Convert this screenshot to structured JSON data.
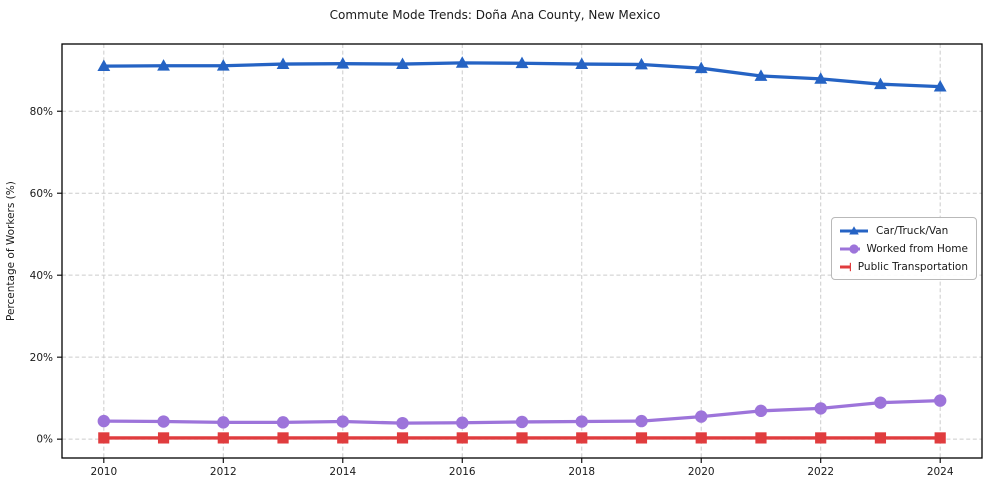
{
  "title": "Commute Mode Trends: Doña Ana County, New Mexico",
  "chart_data": {
    "type": "line",
    "title": "Commute Mode Trends: Doña Ana County, New Mexico",
    "xlabel": "",
    "ylabel": "Percentage of Workers (%)",
    "x": [
      2010,
      2011,
      2012,
      2013,
      2014,
      2015,
      2016,
      2017,
      2018,
      2019,
      2020,
      2021,
      2022,
      2023,
      2024
    ],
    "x_ticks": [
      2010,
      2012,
      2014,
      2016,
      2018,
      2020,
      2022,
      2024
    ],
    "y_ticks": [
      0,
      20,
      40,
      60,
      80
    ],
    "y_tick_suffix": "%",
    "xlim": [
      2009.3,
      2024.7
    ],
    "ylim": [
      -4.6,
      96.4
    ],
    "grid": true,
    "grid_style": "dashed",
    "legend_position": "center-right",
    "background_color": "#ffffff",
    "text_color": "#1a1a1a",
    "grid_color": "#cccccc",
    "series": [
      {
        "name": "Car/Truck/Van",
        "color": "#2563c4",
        "marker": "triangle",
        "values": [
          91.0,
          91.1,
          91.1,
          91.5,
          91.6,
          91.5,
          91.8,
          91.7,
          91.5,
          91.4,
          90.5,
          88.6,
          87.9,
          86.6,
          86.0
        ]
      },
      {
        "name": "Worked from Home",
        "color": "#9d74da",
        "marker": "circle",
        "values": [
          4.4,
          4.3,
          4.1,
          4.1,
          4.3,
          3.9,
          4.0,
          4.2,
          4.3,
          4.4,
          5.5,
          6.9,
          7.5,
          8.9,
          9.4
        ]
      },
      {
        "name": "Public Transportation",
        "color": "#e03c3e",
        "marker": "square",
        "values": [
          0.3,
          0.3,
          0.3,
          0.3,
          0.3,
          0.3,
          0.3,
          0.3,
          0.3,
          0.3,
          0.3,
          0.3,
          0.3,
          0.3,
          0.3
        ]
      }
    ]
  }
}
